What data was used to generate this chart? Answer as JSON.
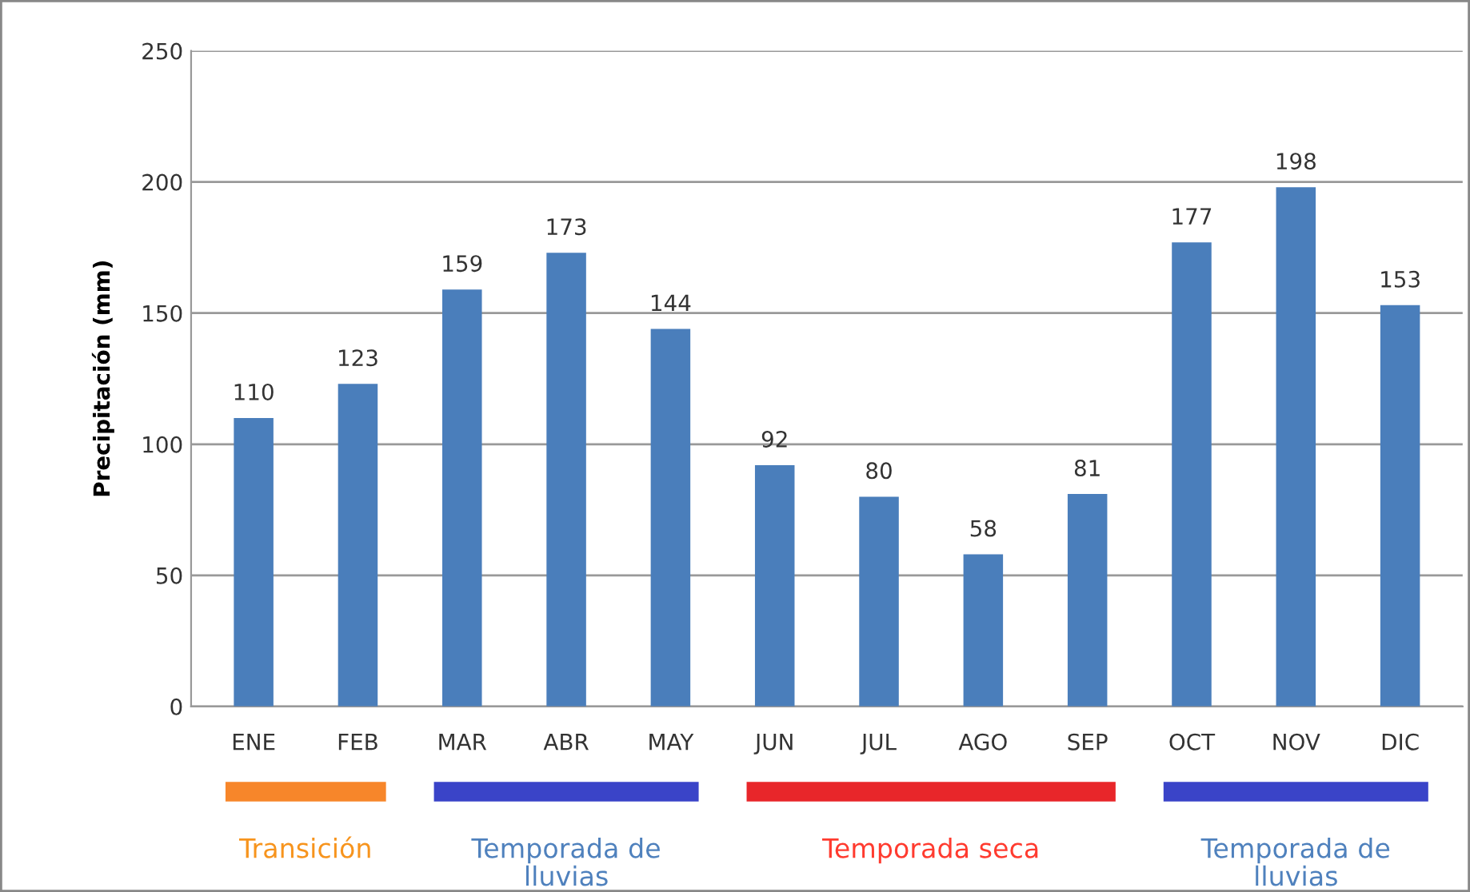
{
  "chart_data": {
    "type": "bar",
    "ylabel": "Precipitación (mm)",
    "categories": [
      "ENE",
      "FEB",
      "MAR",
      "ABR",
      "MAY",
      "JUN",
      "JUL",
      "AGO",
      "SEP",
      "OCT",
      "NOV",
      "DIC"
    ],
    "values": [
      110,
      123,
      159,
      173,
      144,
      92,
      80,
      58,
      81,
      177,
      198,
      153
    ],
    "color": "#4a7ebb",
    "ylim": [
      0,
      250
    ],
    "yticks": [
      0,
      50,
      100,
      150,
      200,
      250
    ],
    "grid": "y",
    "data_labels": true,
    "annotations": [
      "Transición",
      "Temporada de lluvias",
      "Temporada seca",
      "Temporada de lluvias"
    ]
  }
}
